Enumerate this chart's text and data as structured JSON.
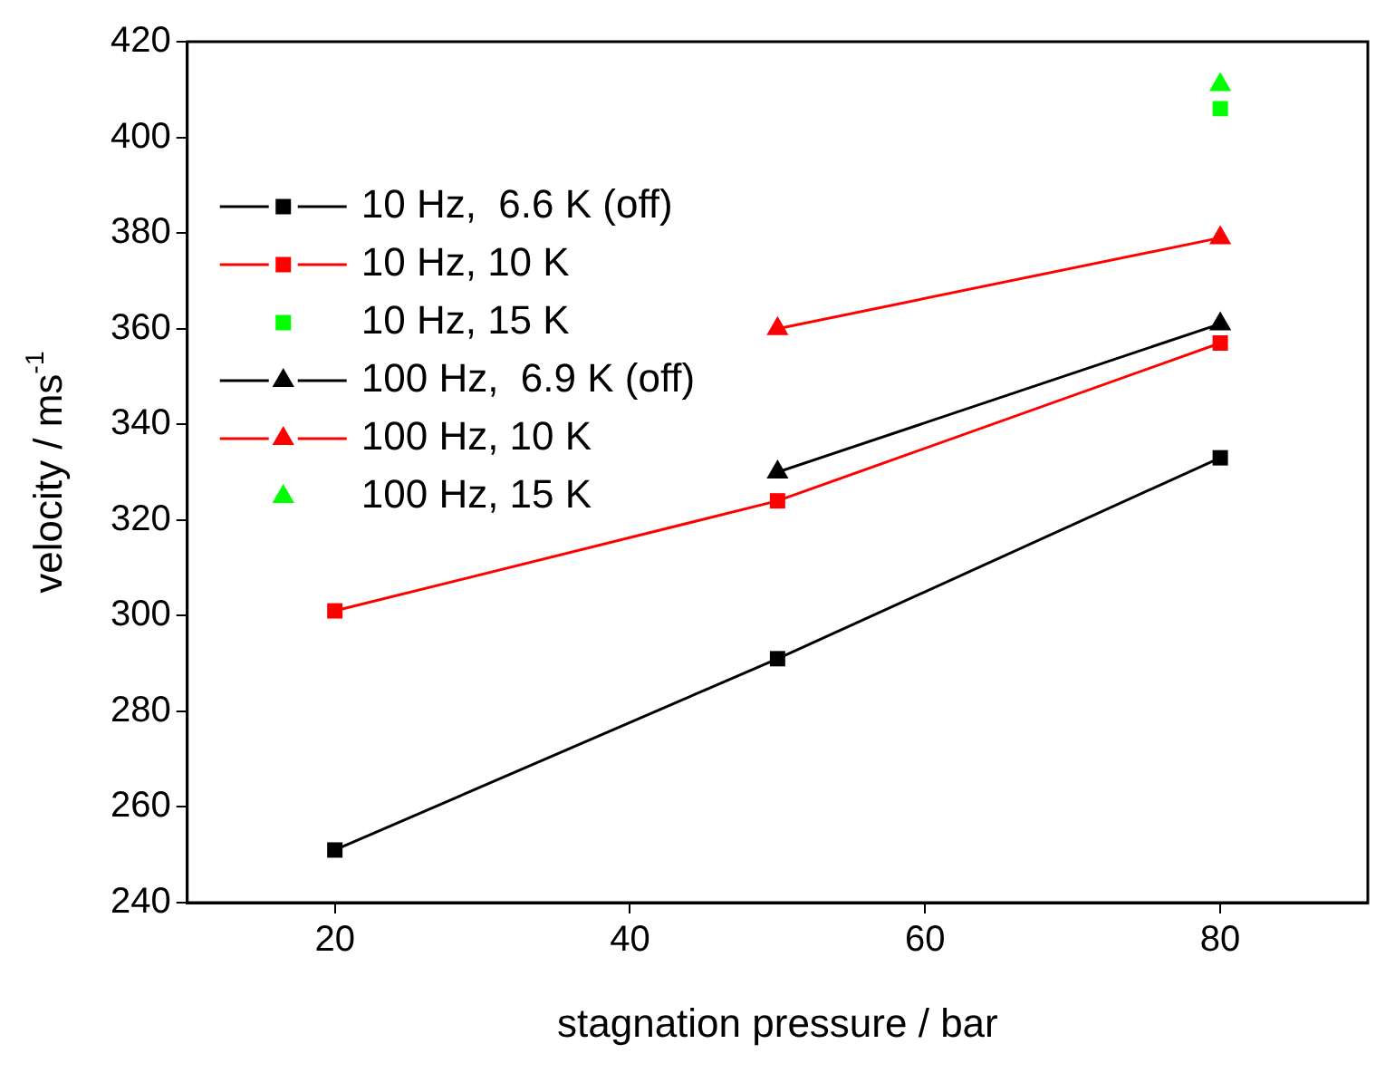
{
  "chart_data": {
    "type": "line",
    "xlabel": "stagnation pressure / bar",
    "ylabel": "velocity / ms$^{-1}$",
    "xlim": [
      10,
      90
    ],
    "xticks": [
      20,
      40,
      60,
      80
    ],
    "ylim": [
      240,
      420
    ],
    "yticks": [
      240,
      260,
      280,
      300,
      320,
      340,
      360,
      380,
      400,
      420
    ],
    "grid": false,
    "legend": "top left",
    "series": [
      {
        "name": "10 Hz,  6.6 K (off)",
        "color": "#000000",
        "marker": "square",
        "x": [
          20,
          50,
          80
        ],
        "values": [
          251,
          291,
          333
        ]
      },
      {
        "name": "10 Hz, 10 K",
        "color": "#ff0000",
        "marker": "square",
        "x": [
          20,
          50,
          80
        ],
        "values": [
          301,
          324,
          357
        ]
      },
      {
        "name": "10 Hz, 15 K",
        "color": "#00ff00",
        "marker": "square",
        "type": "scatter",
        "x": [
          80
        ],
        "values": [
          406
        ]
      },
      {
        "name": "100 Hz,  6.9 K (off)",
        "color": "#000000",
        "marker": "triangle",
        "x": [
          50,
          80
        ],
        "values": [
          330,
          361
        ]
      },
      {
        "name": "100 Hz, 10 K",
        "color": "#ff0000",
        "marker": "triangle",
        "x": [
          50,
          80
        ],
        "values": [
          360,
          379
        ]
      },
      {
        "name": "100 Hz, 15 K",
        "color": "#00ff00",
        "marker": "triangle",
        "type": "scatter",
        "x": [
          80
        ],
        "values": [
          411
        ]
      }
    ]
  }
}
